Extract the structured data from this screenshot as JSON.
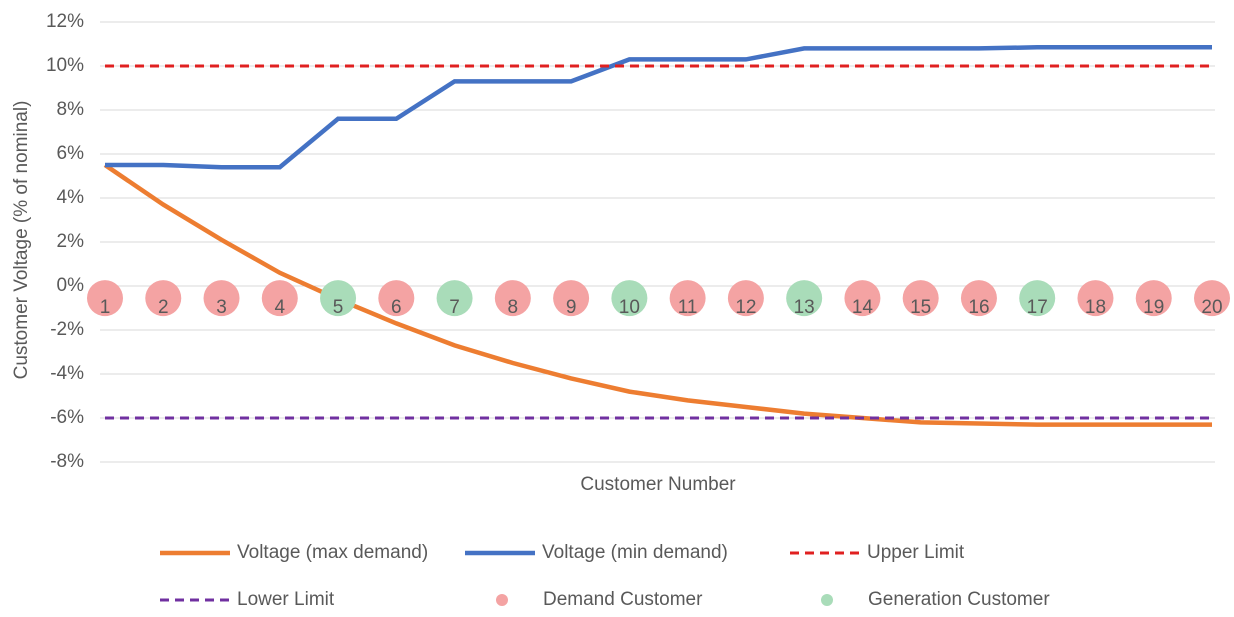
{
  "chart_data": {
    "type": "line",
    "y_axis_label": "Customer Voltage (% of nominal)",
    "x_axis_label": "Customer Number",
    "categories": [
      "1",
      "2",
      "3",
      "4",
      "5",
      "6",
      "7",
      "8",
      "9",
      "10",
      "11",
      "12",
      "13",
      "14",
      "15",
      "16",
      "17",
      "18",
      "19",
      "20"
    ],
    "ylim": [
      -8,
      12
    ],
    "yticks": [
      {
        "value": -8,
        "label": "-8%"
      },
      {
        "value": -6,
        "label": "-6%"
      },
      {
        "value": -4,
        "label": "-4%"
      },
      {
        "value": -2,
        "label": "-2%"
      },
      {
        "value": 0,
        "label": "0%"
      },
      {
        "value": 2,
        "label": "2%"
      },
      {
        "value": 4,
        "label": "4%"
      },
      {
        "value": 6,
        "label": "6%"
      },
      {
        "value": 8,
        "label": "8%"
      },
      {
        "value": 10,
        "label": "10%"
      },
      {
        "value": 12,
        "label": "12%"
      }
    ],
    "grid": true,
    "legend": "bottom",
    "series": [
      {
        "name": "Voltage (max demand)",
        "color": "#ed7d31",
        "style": "solid",
        "values": [
          5.5,
          3.7,
          2.1,
          0.6,
          -0.6,
          -1.7,
          -2.7,
          -3.5,
          -4.2,
          -4.8,
          -5.2,
          -5.5,
          -5.8,
          -6.0,
          -6.2,
          -6.25,
          -6.3,
          -6.3,
          -6.3,
          -6.3
        ]
      },
      {
        "name": "Voltage (min demand)",
        "color": "#4472c4",
        "style": "solid",
        "values": [
          5.5,
          5.5,
          5.4,
          5.4,
          7.6,
          7.6,
          9.3,
          9.3,
          9.3,
          10.3,
          10.3,
          10.3,
          10.8,
          10.8,
          10.8,
          10.8,
          10.85,
          10.85,
          10.85,
          10.85
        ]
      },
      {
        "name": "Upper Limit",
        "color": "#e02020",
        "style": "dashed",
        "values": [
          10,
          10,
          10,
          10,
          10,
          10,
          10,
          10,
          10,
          10,
          10,
          10,
          10,
          10,
          10,
          10,
          10,
          10,
          10,
          10
        ]
      },
      {
        "name": "Lower Limit",
        "color": "#7030a0",
        "style": "dashed",
        "values": [
          -6,
          -6,
          -6,
          -6,
          -6,
          -6,
          -6,
          -6,
          -6,
          -6,
          -6,
          -6,
          -6,
          -6,
          -6,
          -6,
          -6,
          -6,
          -6,
          -6
        ]
      },
      {
        "name": "Demand Customer",
        "color": "#f4a3a3",
        "style": "dot",
        "values": [
          -0.55,
          -0.55,
          -0.55,
          -0.55,
          null,
          -0.55,
          null,
          -0.55,
          -0.55,
          null,
          -0.55,
          -0.55,
          null,
          -0.55,
          -0.55,
          -0.55,
          null,
          -0.55,
          -0.55,
          -0.55
        ]
      },
      {
        "name": "Generation Customer",
        "color": "#a9dcb9",
        "style": "dot",
        "values": [
          null,
          null,
          null,
          null,
          -0.55,
          null,
          -0.55,
          null,
          null,
          -0.55,
          null,
          null,
          -0.55,
          null,
          null,
          null,
          -0.55,
          null,
          null,
          null
        ]
      }
    ]
  }
}
